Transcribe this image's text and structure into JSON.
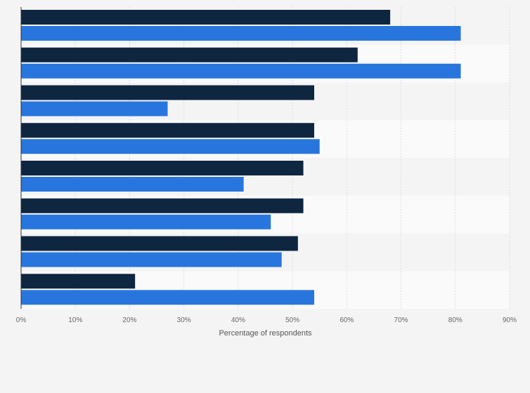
{
  "chart_data": {
    "type": "bar",
    "orientation": "horizontal",
    "categories": [
      "",
      "",
      "",
      "",
      "",
      "",
      "",
      ""
    ],
    "series": [
      {
        "values": [
          68,
          62,
          54,
          54,
          52,
          52,
          51,
          21
        ],
        "color": "#0f2641"
      },
      {
        "values": [
          81,
          81,
          27,
          55,
          41,
          46,
          48,
          54
        ],
        "color": "#2876dd"
      }
    ],
    "xlabel": "Percentage of respondents",
    "xlim": [
      0,
      90
    ],
    "xticks": [
      "0%",
      "10%",
      "20%",
      "30%",
      "40%",
      "50%",
      "60%",
      "70%",
      "80%",
      "90%"
    ],
    "grid": true,
    "colors": {
      "background": "#f4f4f4",
      "band_alt": "#fafafa",
      "grid": "#dddddd",
      "axis": "#333333"
    }
  }
}
